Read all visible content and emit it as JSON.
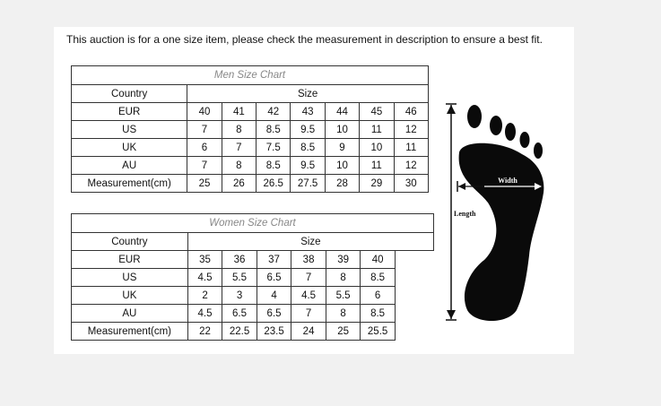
{
  "notice": "This auction is for a one size item, please check the measurement in description to ensure a best fit.",
  "men": {
    "title": "Men Size Chart",
    "header": {
      "country": "Country",
      "size": "Size"
    },
    "rows": [
      {
        "label": "EUR",
        "values": [
          "40",
          "41",
          "42",
          "43",
          "44",
          "45",
          "46"
        ]
      },
      {
        "label": "US",
        "values": [
          "7",
          "8",
          "8.5",
          "9.5",
          "10",
          "11",
          "12"
        ]
      },
      {
        "label": "UK",
        "values": [
          "6",
          "7",
          "7.5",
          "8.5",
          "9",
          "10",
          "11"
        ]
      },
      {
        "label": "AU",
        "values": [
          "7",
          "8",
          "8.5",
          "9.5",
          "10",
          "11",
          "12"
        ]
      },
      {
        "label": "Measurement(cm)",
        "values": [
          "25",
          "26",
          "26.5",
          "27.5",
          "28",
          "29",
          "30"
        ]
      }
    ]
  },
  "women": {
    "title": "Women Size Chart",
    "header": {
      "country": "Country",
      "size": "Size"
    },
    "rows": [
      {
        "label": "EUR",
        "values": [
          "35",
          "36",
          "37",
          "38",
          "39",
          "40"
        ]
      },
      {
        "label": "US",
        "values": [
          "4.5",
          "5.5",
          "6.5",
          "7",
          "8",
          "8.5"
        ]
      },
      {
        "label": "UK",
        "values": [
          "2",
          "3",
          "4",
          "4.5",
          "5.5",
          "6"
        ]
      },
      {
        "label": "AU",
        "values": [
          "4.5",
          "6.5",
          "6.5",
          "7",
          "8",
          "8.5"
        ]
      },
      {
        "label": "Measurement(cm)",
        "values": [
          "22",
          "22.5",
          "23.5",
          "24",
          "25",
          "25.5"
        ]
      }
    ]
  },
  "diagram": {
    "width_label": "Width",
    "length_label": "Length",
    "icon": "foot-icon"
  }
}
